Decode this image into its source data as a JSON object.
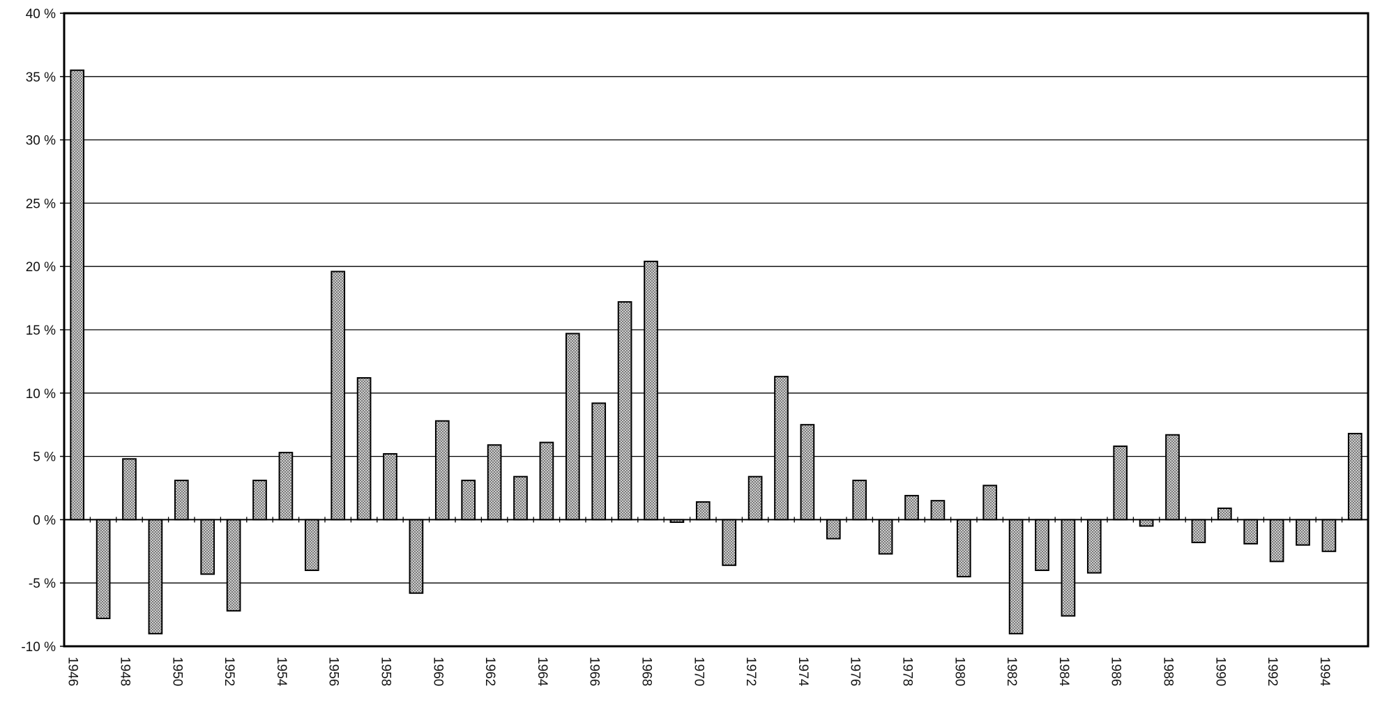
{
  "chart_data": {
    "type": "bar",
    "title": "",
    "xlabel": "",
    "ylabel": "",
    "ylim": [
      -10,
      40
    ],
    "yticks": [
      -10,
      -5,
      0,
      5,
      10,
      15,
      20,
      25,
      30,
      35,
      40
    ],
    "ytick_labels": [
      "-10 %",
      "-5 %",
      "0 %",
      "5 %",
      "10 %",
      "15 %",
      "20 %",
      "25 %",
      "30 %",
      "35 %",
      "40 %"
    ],
    "xtick_labels": [
      "1946",
      "1948",
      "1950",
      "1952",
      "1954",
      "1956",
      "1958",
      "1960",
      "1962",
      "1964",
      "1966",
      "1968",
      "1970",
      "1972",
      "1974",
      "1976",
      "1978",
      "1980",
      "1982",
      "1984",
      "1986",
      "1988",
      "1990",
      "1992",
      "1994"
    ],
    "grid": true,
    "legend": "none",
    "colors": {
      "bar_fill": "#b8b8b8",
      "bar_stroke": "#000000",
      "grid": "#000000"
    },
    "categories": [
      "1946",
      "1947",
      "1948",
      "1949",
      "1950",
      "1951",
      "1952",
      "1953",
      "1954",
      "1955",
      "1956",
      "1957",
      "1958",
      "1959",
      "1960",
      "1961",
      "1962",
      "1963",
      "1964",
      "1965",
      "1966",
      "1967",
      "1968",
      "1969",
      "1970",
      "1971",
      "1972",
      "1973",
      "1974",
      "1975",
      "1976",
      "1977",
      "1978",
      "1979",
      "1980",
      "1981",
      "1982",
      "1983",
      "1984",
      "1985",
      "1986",
      "1987",
      "1988",
      "1989",
      "1990",
      "1991",
      "1992",
      "1993",
      "1994",
      "1995"
    ],
    "values": [
      35.5,
      -7.8,
      4.8,
      -9.0,
      3.1,
      -4.3,
      -7.2,
      3.1,
      5.3,
      -4.0,
      19.6,
      11.2,
      5.2,
      -5.8,
      7.8,
      3.1,
      5.9,
      3.4,
      6.1,
      14.7,
      9.2,
      17.2,
      20.4,
      -0.2,
      1.4,
      -3.6,
      3.4,
      11.3,
      7.5,
      -1.5,
      3.1,
      -2.7,
      1.9,
      1.5,
      -4.5,
      2.7,
      -9.0,
      -4.0,
      -7.6,
      -4.2,
      5.8,
      -0.5,
      6.7,
      -1.8,
      0.9,
      -1.9,
      -3.3,
      -2.0,
      -2.5,
      6.8
    ]
  }
}
